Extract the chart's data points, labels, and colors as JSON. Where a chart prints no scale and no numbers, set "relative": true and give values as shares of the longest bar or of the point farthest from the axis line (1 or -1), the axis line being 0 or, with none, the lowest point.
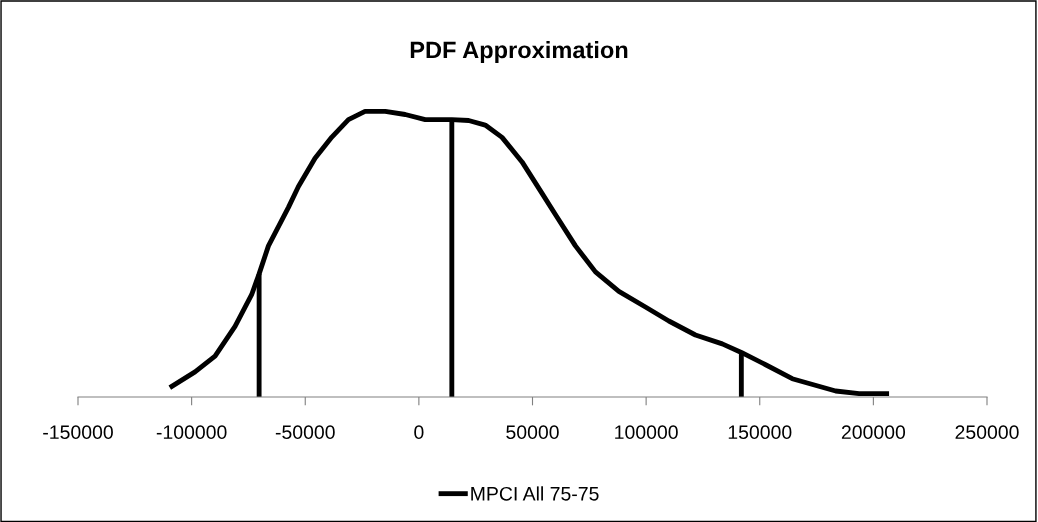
{
  "chart_data": {
    "type": "line",
    "title": "PDF Approximation",
    "relative": true,
    "xlim": [
      -150000,
      250000
    ],
    "xticks": [
      -150000,
      -100000,
      -50000,
      0,
      50000,
      100000,
      150000,
      200000,
      250000
    ],
    "legend": "bottom",
    "grid": false,
    "tick_labels": "x",
    "series": [
      {
        "name": "MPCI All 75-75",
        "color": "#000000",
        "x": [
          -109600,
          -98500,
          -89700,
          -80900,
          -73600,
          -70300,
          -66200,
          -57400,
          -53000,
          -45700,
          -38300,
          -31000,
          -23700,
          -14800,
          -6000,
          2800,
          14500,
          21900,
          29200,
          36600,
          45400,
          54200,
          60000,
          68900,
          77700,
          88000,
          99700,
          110000,
          121700,
          133500,
          141900,
          152600,
          164300,
          183400,
          193700,
          206900
        ],
        "values": [
          0.033,
          0.088,
          0.143,
          0.247,
          0.358,
          0.431,
          0.529,
          0.664,
          0.737,
          0.836,
          0.91,
          0.971,
          1.0,
          1.0,
          0.989,
          0.971,
          0.971,
          0.968,
          0.952,
          0.909,
          0.823,
          0.713,
          0.64,
          0.529,
          0.438,
          0.37,
          0.315,
          0.266,
          0.217,
          0.186,
          0.156,
          0.113,
          0.064,
          0.021,
          0.012,
          0.012
        ]
      },
      {
        "color": "#000000",
        "x": [
          -70300,
          -70300
        ],
        "values": [
          0,
          0.431
        ]
      },
      {
        "color": "#000000",
        "x": [
          14500,
          14500
        ],
        "values": [
          0,
          0.971
        ]
      },
      {
        "color": "#000000",
        "x": [
          141900,
          141900
        ],
        "values": [
          0,
          0.156
        ]
      }
    ]
  }
}
